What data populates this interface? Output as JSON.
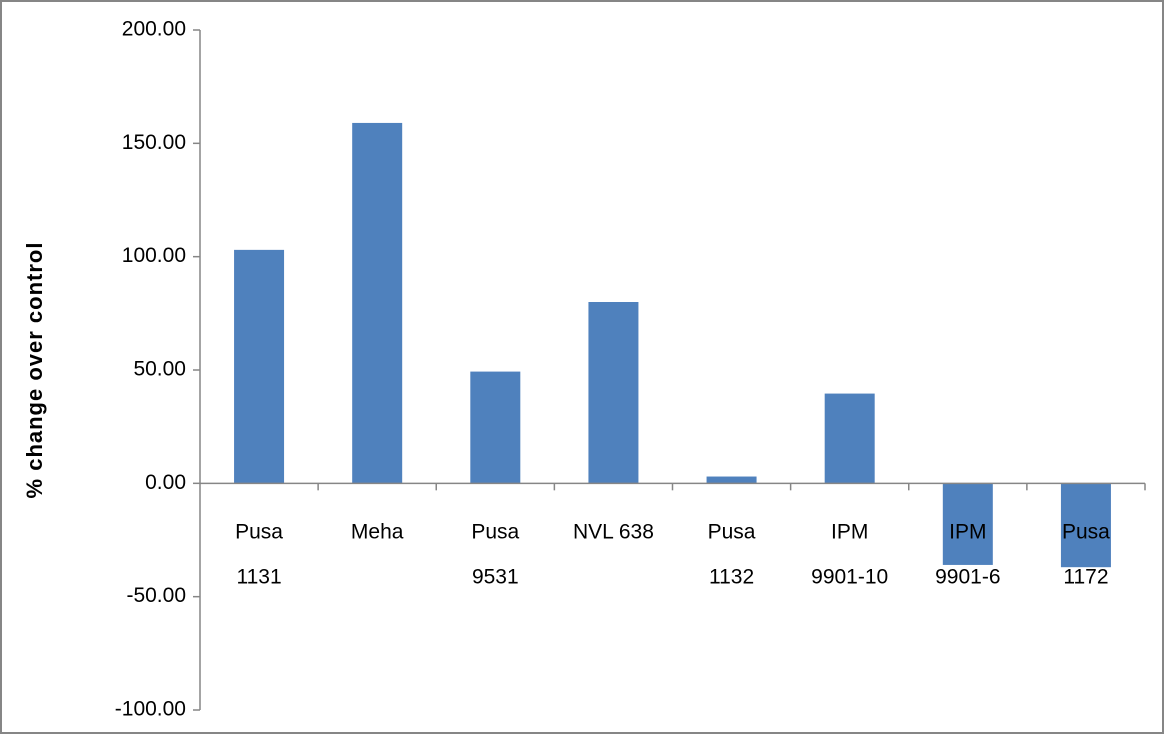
{
  "chart_data": {
    "type": "bar",
    "y_label": "% change over control",
    "categories": [
      [
        "Pusa",
        "1131"
      ],
      [
        "Meha"
      ],
      [
        "Pusa",
        "9531"
      ],
      [
        "NVL 638"
      ],
      [
        "Pusa",
        "1132"
      ],
      [
        "IPM",
        "9901-10"
      ],
      [
        "IPM",
        "9901-6"
      ],
      [
        "Pusa",
        "1172"
      ]
    ],
    "values": [
      103,
      159,
      49.3,
      80,
      3,
      39.6,
      -36,
      -37
    ],
    "color": "#4f81bd",
    "ylim": [
      -100,
      200
    ],
    "yticks": [
      {
        "value": -100,
        "label": "-100.00"
      },
      {
        "value": -50,
        "label": "-50.00"
      },
      {
        "value": 0,
        "label": "0.00"
      },
      {
        "value": 50,
        "label": "50.00"
      },
      {
        "value": 100,
        "label": "100.00"
      },
      {
        "value": 150,
        "label": "150.00"
      },
      {
        "value": 200,
        "label": "200.00"
      }
    ],
    "grid": false
  }
}
